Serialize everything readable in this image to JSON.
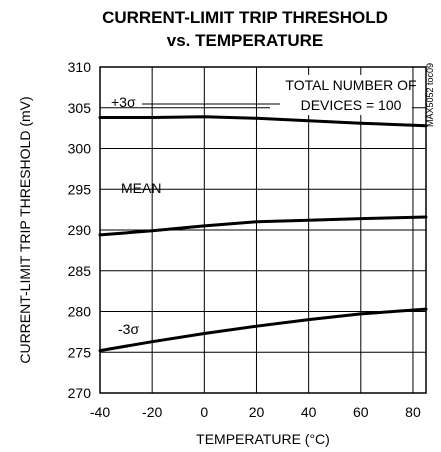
{
  "chart_data": {
    "type": "line",
    "title": [
      "CURRENT-LIMIT TRIP THRESHOLD",
      "vs. TEMPERATURE"
    ],
    "xlabel": "TEMPERATURE (°C)",
    "ylabel": "CURRENT-LIMIT TRIP THRESHOLD (mV)",
    "xlim": [
      -40,
      85
    ],
    "ylim": [
      270,
      310
    ],
    "x_ticks": [
      -40,
      -20,
      0,
      20,
      40,
      60,
      80
    ],
    "y_ticks": [
      270,
      275,
      280,
      285,
      290,
      295,
      300,
      305,
      310
    ],
    "grid": true,
    "annotation": [
      "TOTAL NUMBER OF",
      "DEVICES = 100"
    ],
    "figure_code": "MAX5052 toc09",
    "series": [
      {
        "name": "+3σ",
        "x": [
          -40,
          -20,
          0,
          20,
          40,
          60,
          85
        ],
        "y": [
          303.8,
          303.8,
          303.9,
          303.7,
          303.4,
          303.1,
          302.8
        ]
      },
      {
        "name": "MEAN",
        "x": [
          -40,
          -20,
          0,
          20,
          40,
          60,
          85
        ],
        "y": [
          289.4,
          289.9,
          290.5,
          291.0,
          291.2,
          291.4,
          291.6
        ]
      },
      {
        "name": "-3σ",
        "x": [
          -40,
          -20,
          0,
          20,
          40,
          60,
          85
        ],
        "y": [
          275.2,
          276.3,
          277.3,
          278.2,
          279.0,
          279.7,
          280.3
        ]
      }
    ]
  }
}
